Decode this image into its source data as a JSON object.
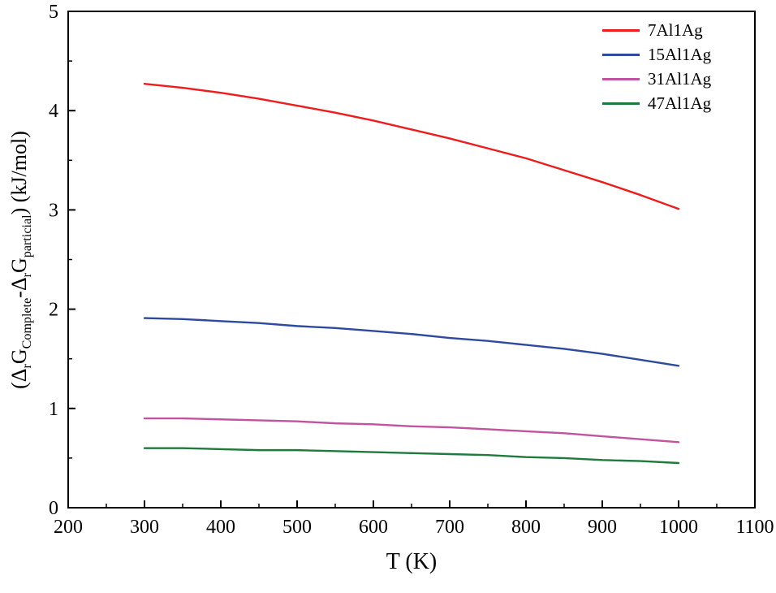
{
  "chart_data": {
    "type": "line",
    "title": "",
    "xlabel": "T (K)",
    "ylabel": "(ΔrGComplete-ΔrGparticial) (kJ/mol)",
    "ylabel_rich": [
      {
        "t": "(Δ"
      },
      {
        "t": "r",
        "sub": true
      },
      {
        "t": "G"
      },
      {
        "t": "Complete",
        "sub": true
      },
      {
        "t": "-Δ"
      },
      {
        "t": "r",
        "sub": true
      },
      {
        "t": "G"
      },
      {
        "t": "particial",
        "sub": true
      },
      {
        "t": ") (kJ/mol)"
      }
    ],
    "xlim": [
      200,
      1100
    ],
    "ylim": [
      0,
      5
    ],
    "xticks": [
      200,
      300,
      400,
      500,
      600,
      700,
      800,
      900,
      1000,
      1100
    ],
    "yticks": [
      0,
      1,
      2,
      3,
      4,
      5
    ],
    "x_minor_step": 50,
    "y_minor_step": 0.5,
    "grid": false,
    "legend_position": "top-right",
    "axis_color": "#000000",
    "x": [
      300,
      350,
      400,
      450,
      500,
      550,
      600,
      650,
      700,
      750,
      800,
      850,
      900,
      950,
      1000
    ],
    "series": [
      {
        "name": "7Al1Ag",
        "color": "#ee1c1c",
        "values": [
          4.27,
          4.23,
          4.18,
          4.12,
          4.05,
          3.98,
          3.9,
          3.81,
          3.72,
          3.62,
          3.52,
          3.4,
          3.28,
          3.15,
          3.01
        ]
      },
      {
        "name": "15Al1Ag",
        "color": "#2d4a9e",
        "values": [
          1.91,
          1.9,
          1.88,
          1.86,
          1.83,
          1.81,
          1.78,
          1.75,
          1.71,
          1.68,
          1.64,
          1.6,
          1.55,
          1.49,
          1.43
        ]
      },
      {
        "name": "31Al1Ag",
        "color": "#c0549f",
        "values": [
          0.9,
          0.9,
          0.89,
          0.88,
          0.87,
          0.85,
          0.84,
          0.82,
          0.81,
          0.79,
          0.77,
          0.75,
          0.72,
          0.69,
          0.66
        ]
      },
      {
        "name": "47Al1Ag",
        "color": "#1f7a3d",
        "values": [
          0.6,
          0.6,
          0.59,
          0.58,
          0.58,
          0.57,
          0.56,
          0.55,
          0.54,
          0.53,
          0.51,
          0.5,
          0.48,
          0.47,
          0.45
        ]
      }
    ]
  }
}
